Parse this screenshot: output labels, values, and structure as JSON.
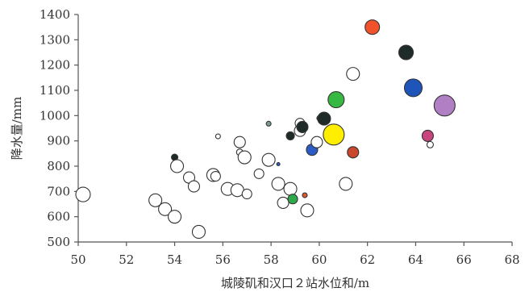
{
  "chart_data": {
    "type": "scatter",
    "title": "",
    "xlabel": "城陵矶和汉口２站水位和/m",
    "ylabel": "降水量/mm",
    "xlim": [
      50,
      68
    ],
    "ylim": [
      500,
      1400
    ],
    "xticks": [
      50,
      52,
      54,
      56,
      58,
      60,
      62,
      64,
      66,
      68
    ],
    "yticks": [
      500,
      600,
      700,
      800,
      900,
      1000,
      1100,
      1200,
      1300,
      1400
    ],
    "grid": false,
    "legend": "none",
    "points": [
      {
        "x": 50.2,
        "y": 688,
        "r": 9,
        "color": "#ffffff"
      },
      {
        "x": 53.2,
        "y": 665,
        "r": 8,
        "color": "#ffffff"
      },
      {
        "x": 53.6,
        "y": 630,
        "r": 8,
        "color": "#ffffff"
      },
      {
        "x": 54.0,
        "y": 600,
        "r": 8,
        "color": "#ffffff"
      },
      {
        "x": 54.0,
        "y": 835,
        "r": 4,
        "color": "#1f2b28"
      },
      {
        "x": 54.1,
        "y": 800,
        "r": 8,
        "color": "#ffffff"
      },
      {
        "x": 54.6,
        "y": 755,
        "r": 7,
        "color": "#ffffff"
      },
      {
        "x": 54.8,
        "y": 720,
        "r": 7,
        "color": "#ffffff"
      },
      {
        "x": 55.0,
        "y": 540,
        "r": 8,
        "color": "#ffffff"
      },
      {
        "x": 55.6,
        "y": 765,
        "r": 8,
        "color": "#ffffff"
      },
      {
        "x": 55.7,
        "y": 760,
        "r": 6,
        "color": "#ffffff"
      },
      {
        "x": 55.8,
        "y": 918,
        "r": 3,
        "color": "#ffffff"
      },
      {
        "x": 56.2,
        "y": 710,
        "r": 8,
        "color": "#ffffff"
      },
      {
        "x": 56.6,
        "y": 705,
        "r": 8,
        "color": "#ffffff"
      },
      {
        "x": 56.7,
        "y": 895,
        "r": 7,
        "color": "#ffffff"
      },
      {
        "x": 56.7,
        "y": 855,
        "r": 4,
        "color": "#ffffff"
      },
      {
        "x": 56.9,
        "y": 835,
        "r": 8,
        "color": "#ffffff"
      },
      {
        "x": 57.0,
        "y": 690,
        "r": 6,
        "color": "#ffffff"
      },
      {
        "x": 57.5,
        "y": 770,
        "r": 6,
        "color": "#ffffff"
      },
      {
        "x": 57.9,
        "y": 968,
        "r": 3,
        "color": "#7a9e90"
      },
      {
        "x": 57.9,
        "y": 825,
        "r": 8,
        "color": "#ffffff"
      },
      {
        "x": 58.3,
        "y": 808,
        "r": 2,
        "color": "#2b5bc4"
      },
      {
        "x": 58.3,
        "y": 730,
        "r": 8,
        "color": "#ffffff"
      },
      {
        "x": 58.5,
        "y": 655,
        "r": 7,
        "color": "#ffffff"
      },
      {
        "x": 58.8,
        "y": 710,
        "r": 8,
        "color": "#ffffff"
      },
      {
        "x": 58.8,
        "y": 920,
        "r": 5,
        "color": "#1f2b28"
      },
      {
        "x": 58.9,
        "y": 670,
        "r": 6,
        "color": "#2ea84a"
      },
      {
        "x": 59.2,
        "y": 970,
        "r": 6,
        "color": "#ffffff"
      },
      {
        "x": 59.2,
        "y": 940,
        "r": 7,
        "color": "#ffffff"
      },
      {
        "x": 59.3,
        "y": 955,
        "r": 7,
        "color": "#1f2b28"
      },
      {
        "x": 59.4,
        "y": 685,
        "r": 3,
        "color": "#e0552b"
      },
      {
        "x": 59.5,
        "y": 625,
        "r": 8,
        "color": "#ffffff"
      },
      {
        "x": 59.7,
        "y": 865,
        "r": 7,
        "color": "#2b5bc4"
      },
      {
        "x": 59.9,
        "y": 895,
        "r": 7,
        "color": "#ffffff"
      },
      {
        "x": 60.0,
        "y": 990,
        "r": 3,
        "color": "#ffffff"
      },
      {
        "x": 60.2,
        "y": 988,
        "r": 8,
        "color": "#1f2b28"
      },
      {
        "x": 60.6,
        "y": 925,
        "r": 13,
        "color": "#ffee00"
      },
      {
        "x": 60.7,
        "y": 1063,
        "r": 10,
        "color": "#37b843"
      },
      {
        "x": 61.1,
        "y": 730,
        "r": 8,
        "color": "#ffffff"
      },
      {
        "x": 61.4,
        "y": 855,
        "r": 7,
        "color": "#c9472c"
      },
      {
        "x": 61.4,
        "y": 1165,
        "r": 8,
        "color": "#ffffff"
      },
      {
        "x": 62.2,
        "y": 1350,
        "r": 9,
        "color": "#f0522b"
      },
      {
        "x": 63.6,
        "y": 1250,
        "r": 9,
        "color": "#1f2b28"
      },
      {
        "x": 63.9,
        "y": 1110,
        "r": 11,
        "color": "#1f54b8"
      },
      {
        "x": 64.5,
        "y": 920,
        "r": 7,
        "color": "#c7457c"
      },
      {
        "x": 64.6,
        "y": 885,
        "r": 4,
        "color": "#ffffff"
      },
      {
        "x": 65.2,
        "y": 1040,
        "r": 13,
        "color": "#b07fc4"
      }
    ]
  }
}
